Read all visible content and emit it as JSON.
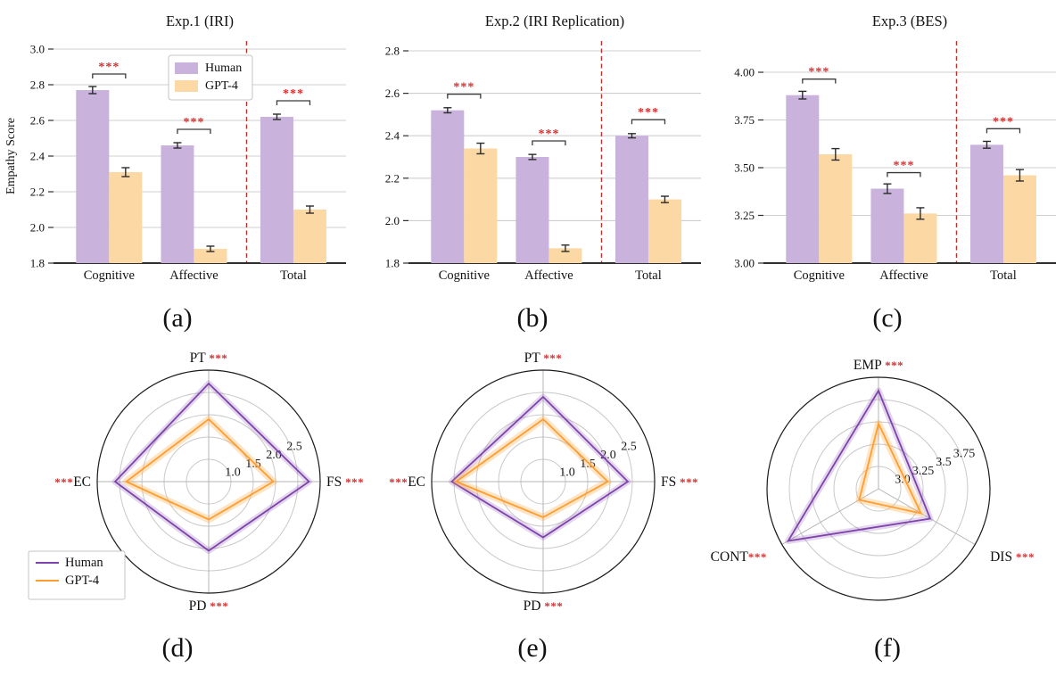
{
  "captions": [
    "(a)",
    "(b)",
    "(c)",
    "(d)",
    "(e)",
    "(f)"
  ],
  "colors": {
    "human_fill": "#c9b2dc",
    "gpt_fill": "#fcd8a5",
    "human_line": "#7e43ac",
    "gpt_line": "#ff9d2f",
    "significance": "#d22f2f",
    "divider": "#b3362e",
    "grid": "#cfcfcf",
    "axis": "#2f2f2f",
    "ring": "#c9c9c9",
    "spoke": "#b5b5b5",
    "error": "#2b2b2b",
    "bracket": "#3a3a3a"
  },
  "legend": {
    "entries": [
      "Human",
      "GPT-4"
    ]
  },
  "chart_data": [
    {
      "id": "bar-exp1",
      "type": "bar",
      "title": "Exp.1 (IRI)",
      "ylabel": "Empathy Score",
      "categories": [
        "Cognitive",
        "Affective",
        "Total"
      ],
      "ylim": [
        1.8,
        3.05
      ],
      "yticks": [
        "1.8",
        "2.0",
        "2.2",
        "2.4",
        "2.6",
        "2.8",
        "3.0"
      ],
      "grid": true,
      "legend": {
        "show": true,
        "position": "top-center"
      },
      "divider": {
        "between": [
          "Affective",
          "Total"
        ],
        "style": "dashed"
      },
      "significance": [
        "***",
        "***",
        "***"
      ],
      "series": [
        {
          "name": "Human",
          "values": [
            2.77,
            2.46,
            2.62
          ],
          "errors": [
            0.02,
            0.015,
            0.015
          ]
        },
        {
          "name": "GPT-4",
          "values": [
            2.31,
            1.88,
            2.1
          ],
          "errors": [
            0.025,
            0.015,
            0.02
          ]
        }
      ]
    },
    {
      "id": "bar-exp2",
      "type": "bar",
      "title": "Exp.2 (IRI Replication)",
      "ylabel": "",
      "categories": [
        "Cognitive",
        "Affective",
        "Total"
      ],
      "ylim": [
        1.8,
        2.85
      ],
      "yticks": [
        "1.8",
        "2.0",
        "2.2",
        "2.4",
        "2.6",
        "2.8"
      ],
      "grid": true,
      "legend": {
        "show": false
      },
      "divider": {
        "between": [
          "Affective",
          "Total"
        ],
        "style": "dashed"
      },
      "significance": [
        "***",
        "***",
        "***"
      ],
      "series": [
        {
          "name": "Human",
          "values": [
            2.52,
            2.3,
            2.4
          ],
          "errors": [
            0.012,
            0.012,
            0.01
          ]
        },
        {
          "name": "GPT-4",
          "values": [
            2.34,
            1.87,
            2.1
          ],
          "errors": [
            0.025,
            0.015,
            0.015
          ]
        }
      ]
    },
    {
      "id": "bar-exp3",
      "type": "bar",
      "title": "Exp.3 (BES)",
      "ylabel": "",
      "categories": [
        "Cognitive",
        "Affective",
        "Total"
      ],
      "ylim": [
        3.0,
        4.07
      ],
      "yticks": [
        "3.00",
        "3.25",
        "3.50",
        "3.75",
        "4.00"
      ],
      "grid": true,
      "legend": {
        "show": false
      },
      "divider": {
        "between": [
          "Affective",
          "Total"
        ],
        "style": "dashed"
      },
      "significance": [
        "***",
        "***",
        "***"
      ],
      "series": [
        {
          "name": "Human",
          "values": [
            3.88,
            3.39,
            3.62
          ],
          "errors": [
            0.02,
            0.025,
            0.018
          ]
        },
        {
          "name": "GPT-4",
          "values": [
            3.57,
            3.26,
            3.46
          ],
          "errors": [
            0.03,
            0.03,
            0.03
          ]
        }
      ]
    },
    {
      "id": "radar-exp1",
      "type": "radar",
      "axes": [
        {
          "label": "PT",
          "sig": "***",
          "side": "after",
          "gap": " "
        },
        {
          "label": "FS",
          "sig": "***",
          "side": "after",
          "gap": " "
        },
        {
          "label": "PD",
          "sig": "***",
          "side": "after",
          "gap": " "
        },
        {
          "label": "EC",
          "sig": "***",
          "side": "before",
          "gap": ""
        }
      ],
      "axis_angles_deg": [
        90,
        0,
        270,
        180
      ],
      "rmin": 0.5,
      "rmax": 3.0,
      "rings": [
        1.0,
        1.5,
        2.0,
        2.5
      ],
      "tick_labels": [
        "1.0",
        "1.5",
        "2.0",
        "2.5"
      ],
      "legend": {
        "show": true,
        "position": "bottom-left"
      },
      "series": [
        {
          "name": "Human",
          "values": [
            2.7,
            2.75,
            2.05,
            2.6
          ]
        },
        {
          "name": "GPT-4",
          "values": [
            1.9,
            1.95,
            1.35,
            2.35
          ]
        }
      ]
    },
    {
      "id": "radar-exp2",
      "type": "radar",
      "axes": [
        {
          "label": "PT",
          "sig": "***",
          "side": "after",
          "gap": " "
        },
        {
          "label": "FS",
          "sig": "***",
          "side": "after",
          "gap": " "
        },
        {
          "label": "PD",
          "sig": "***",
          "side": "after",
          "gap": " "
        },
        {
          "label": "EC",
          "sig": "***",
          "side": "before",
          "gap": ""
        }
      ],
      "axis_angles_deg": [
        90,
        0,
        270,
        180
      ],
      "rmin": 0.5,
      "rmax": 3.0,
      "rings": [
        1.0,
        1.5,
        2.0,
        2.5
      ],
      "tick_labels": [
        "1.0",
        "1.5",
        "2.0",
        "2.5"
      ],
      "legend": {
        "show": false
      },
      "series": [
        {
          "name": "Human",
          "values": [
            2.4,
            2.4,
            1.75,
            2.55
          ]
        },
        {
          "name": "GPT-4",
          "values": [
            1.9,
            1.95,
            1.3,
            2.45
          ]
        }
      ]
    },
    {
      "id": "radar-exp3",
      "type": "radar",
      "axes": [
        {
          "label": "EMP",
          "sig": "***",
          "side": "after",
          "gap": " "
        },
        {
          "label": "DIS",
          "sig": "***",
          "side": "after",
          "gap": " "
        },
        {
          "label": "CONT",
          "sig": "***",
          "side": "after",
          "gap": ""
        }
      ],
      "axis_angles_deg": [
        90,
        -30,
        210
      ],
      "rmin": 2.75,
      "rmax": 4.0,
      "rings": [
        3.0,
        3.25,
        3.5,
        3.75
      ],
      "tick_labels": [
        "3.0",
        "3.25",
        "3.5",
        "3.75"
      ],
      "legend": {
        "show": false
      },
      "series": [
        {
          "name": "Human",
          "values": [
            3.85,
            3.42,
            3.92
          ]
        },
        {
          "name": "GPT-4",
          "values": [
            3.48,
            3.3,
            3.0
          ]
        }
      ]
    }
  ]
}
